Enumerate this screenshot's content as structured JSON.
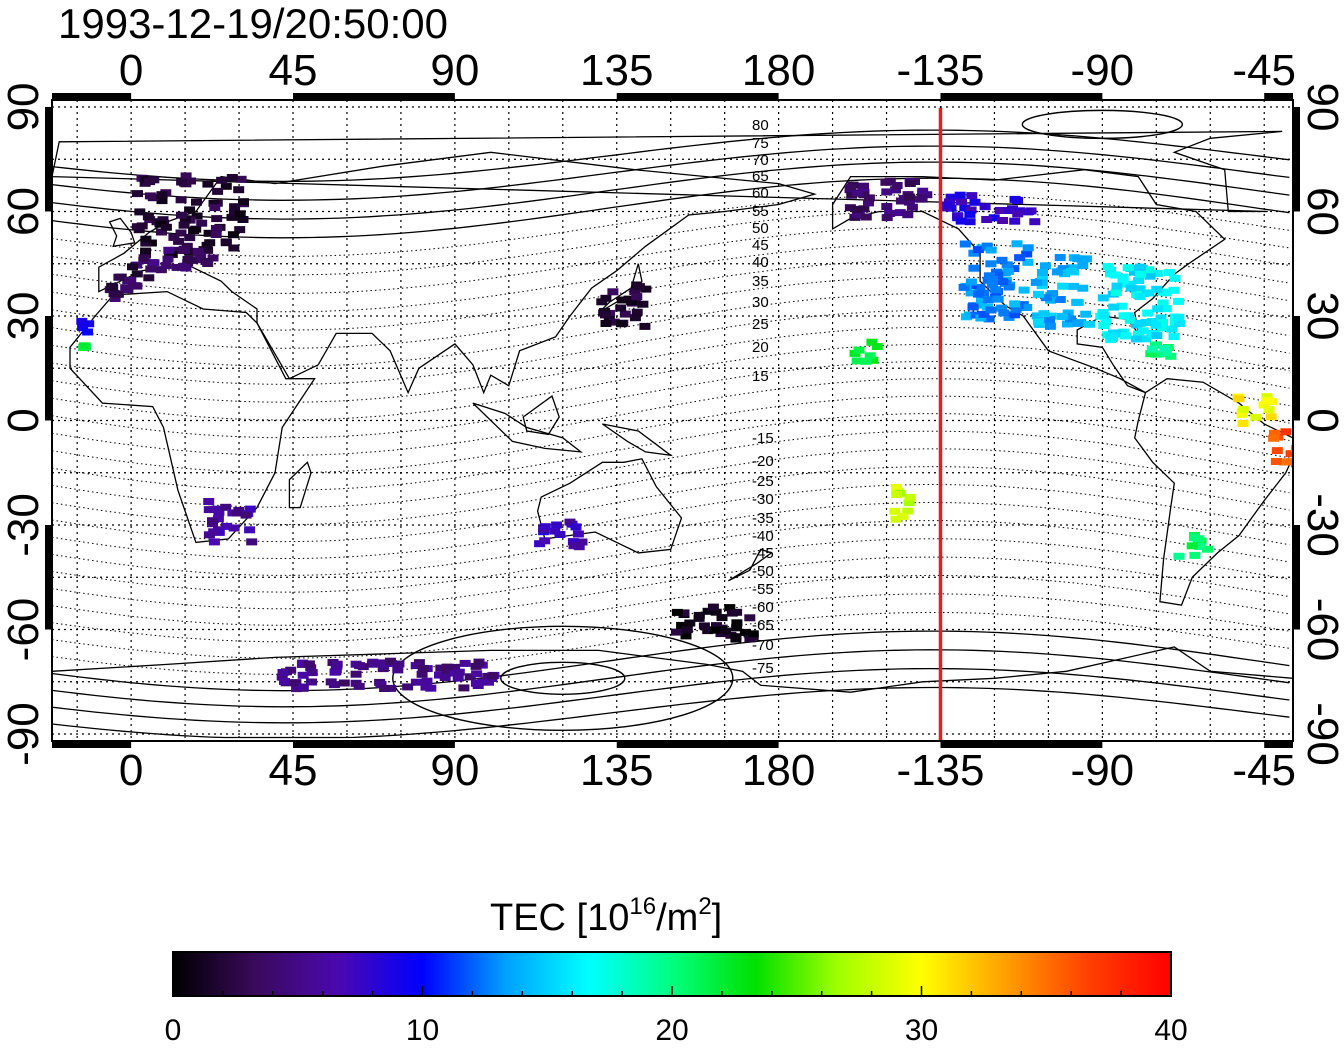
{
  "title": "1993-12-19/20:50:00",
  "map": {
    "top_longitude_ticks": [
      "0",
      "45",
      "90",
      "135",
      "180",
      "-135",
      "-90",
      "-45"
    ],
    "bottom_longitude_ticks": [
      "0",
      "45",
      "90",
      "135",
      "180",
      "-135",
      "-90",
      "-45"
    ],
    "left_latitude_ticks": [
      "90",
      "60",
      "30",
      "0",
      "-30",
      "-60",
      "-90"
    ],
    "right_latitude_ticks": [
      "90",
      "60",
      "30",
      "0",
      "-30",
      "-60",
      "-90"
    ],
    "longitude_range": [
      -22,
      323
    ],
    "latitude_range": [
      -92,
      92
    ],
    "grid_spacing_deg": 15,
    "grid": "dotted",
    "terminator_longitude": -135,
    "terminator_color": "#e0201c",
    "magnetic_latitude_labels": {
      "north": [
        "80",
        "75",
        "70",
        "65",
        "60",
        "55",
        "50",
        "45",
        "40",
        "35",
        "30",
        "25",
        "20",
        "15"
      ],
      "south": [
        "-15",
        "-20",
        "-25",
        "-30",
        "-35",
        "-40",
        "-45",
        "-50",
        "-55",
        "-60",
        "-65",
        "-70",
        "-75"
      ]
    }
  },
  "colorbar": {
    "title_prefix": "TEC  [10",
    "title_exponent": "16",
    "title_mid": "/m",
    "title_exponent2": "2",
    "title_suffix": "]",
    "ticks": [
      "0",
      "10",
      "20",
      "30",
      "40"
    ],
    "min": 0,
    "max": 40,
    "colormap": [
      "#000000",
      "#3a0a5c",
      "#4b08b0",
      "#0000ff",
      "#00a0ff",
      "#00ffff",
      "#00ff80",
      "#00e000",
      "#a0ff00",
      "#ffff00",
      "#ffa000",
      "#ff4000",
      "#ff0000"
    ]
  },
  "tec_samples": [
    {
      "region": "europe",
      "lon_range": [
        0,
        30
      ],
      "lat_range": [
        48,
        72
      ],
      "tec": 2
    },
    {
      "region": "europe-south",
      "lon_range": [
        2,
        22
      ],
      "lat_range": [
        44,
        50
      ],
      "tec": 4
    },
    {
      "region": "iberia",
      "lon_range": [
        -8,
        4
      ],
      "lat_range": [
        36,
        46
      ],
      "tec": 3
    },
    {
      "region": "canaries",
      "lon_range": [
        -18,
        -12
      ],
      "lat_range": [
        26,
        30
      ],
      "tec": 10
    },
    {
      "region": "canaries-green",
      "lon_range": [
        -15,
        -14
      ],
      "lat_range": [
        22,
        23
      ],
      "tec": 22
    },
    {
      "region": "south-africa",
      "lon_range": [
        20,
        32
      ],
      "lat_range": [
        -34,
        -22
      ],
      "tec": 6
    },
    {
      "region": "japan",
      "lon_range": [
        128,
        142
      ],
      "lat_range": [
        28,
        40
      ],
      "tec": 2
    },
    {
      "region": "australia-west",
      "lon_range": [
        112,
        124
      ],
      "lat_range": [
        -36,
        -28
      ],
      "tec": 7
    },
    {
      "region": "new-zealand",
      "lon_range": [
        150,
        172
      ],
      "lat_range": [
        -62,
        -52
      ],
      "tec": 1
    },
    {
      "region": "antarctica",
      "lon_range": [
        40,
        100
      ],
      "lat_range": [
        -76,
        -68
      ],
      "tec": 5
    },
    {
      "region": "alaska",
      "lon_range": [
        -162,
        -140
      ],
      "lat_range": [
        58,
        70
      ],
      "tec": 4
    },
    {
      "region": "north-america-west",
      "lon_range": [
        -130,
        -112
      ],
      "lat_range": [
        30,
        52
      ],
      "tec": 13
    },
    {
      "region": "north-america-central",
      "lon_range": [
        -110,
        -95
      ],
      "lat_range": [
        28,
        48
      ],
      "tec": 14
    },
    {
      "region": "north-america-east",
      "lon_range": [
        -92,
        -70
      ],
      "lat_range": [
        24,
        46
      ],
      "tec": 16
    },
    {
      "region": "canada-north",
      "lon_range": [
        -135,
        -110
      ],
      "lat_range": [
        58,
        66
      ],
      "tec": 8
    },
    {
      "region": "hawaii",
      "lon_range": [
        -162,
        -154
      ],
      "lat_range": [
        18,
        24
      ],
      "tec": 22
    },
    {
      "region": "tahiti",
      "lon_range": [
        -150,
        -144
      ],
      "lat_range": [
        -28,
        -18
      ],
      "tec": 28
    },
    {
      "region": "caribbean",
      "lon_range": [
        -82,
        -72
      ],
      "lat_range": [
        18,
        24
      ],
      "tec": 20
    },
    {
      "region": "brazil-north",
      "lon_range": [
        -54,
        -44
      ],
      "lat_range": [
        0,
        8
      ],
      "tec": 30
    },
    {
      "region": "brazil-east",
      "lon_range": [
        -44,
        -36
      ],
      "lat_range": [
        -12,
        -2
      ],
      "tec": 36
    },
    {
      "region": "argentina",
      "lon_range": [
        -72,
        -62
      ],
      "lat_range": [
        -38,
        -32
      ],
      "tec": 21
    }
  ]
}
